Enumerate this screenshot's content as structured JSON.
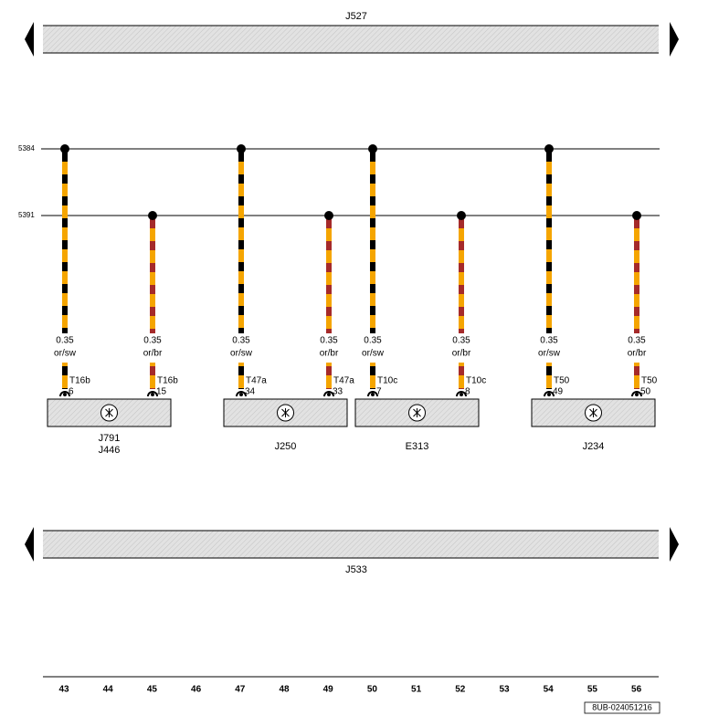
{
  "header": {
    "top_bus": "J527",
    "bottom_bus": "J533"
  },
  "wires": [
    {
      "label": "5384"
    },
    {
      "label": "5391"
    }
  ],
  "branches": [
    {
      "size": "0.35",
      "color": "or/sw",
      "connector": "T16b",
      "pin": "6"
    },
    {
      "size": "0.35",
      "color": "or/br",
      "connector": "T16b",
      "pin": "15"
    },
    {
      "size": "0.35",
      "color": "or/sw",
      "connector": "T47a",
      "pin": "34"
    },
    {
      "size": "0.35",
      "color": "or/br",
      "connector": "T47a",
      "pin": "33"
    },
    {
      "size": "0.35",
      "color": "or/sw",
      "connector": "T10c",
      "pin": "7"
    },
    {
      "size": "0.35",
      "color": "or/br",
      "connector": "T10c",
      "pin": "8"
    },
    {
      "size": "0.35",
      "color": "or/sw",
      "connector": "T50",
      "pin": "49"
    },
    {
      "size": "0.35",
      "color": "or/br",
      "connector": "T50",
      "pin": "50"
    }
  ],
  "components": [
    {
      "labels": [
        "J791",
        "J446"
      ]
    },
    {
      "labels": [
        "J250"
      ]
    },
    {
      "labels": [
        "E313"
      ]
    },
    {
      "labels": [
        "J234"
      ]
    }
  ],
  "ruler": [
    43,
    44,
    45,
    46,
    47,
    48,
    49,
    50,
    51,
    52,
    53,
    54,
    55,
    56
  ],
  "doc_id": "8UB-024051216"
}
